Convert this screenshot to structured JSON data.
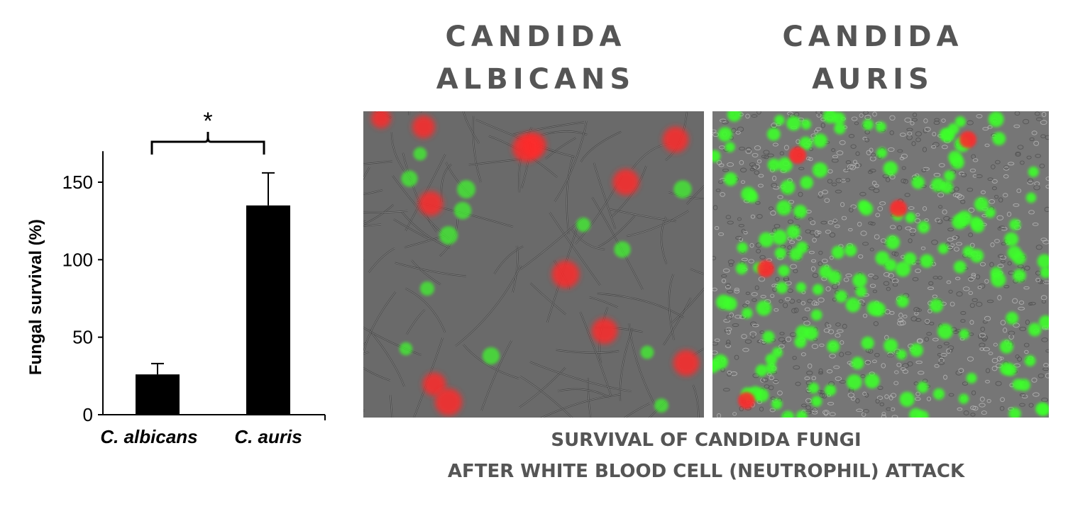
{
  "chart_data": {
    "type": "bar",
    "categories": [
      "C. albicans",
      "C. auris"
    ],
    "values": [
      26,
      135
    ],
    "errors": [
      7,
      21
    ],
    "ylabel": "Fungal survival (%)",
    "xlabel": "",
    "yticks": [
      0,
      50,
      100,
      150
    ],
    "ylim": [
      0,
      170
    ],
    "significance_marker": "*",
    "bar_color": "#000000",
    "grid": false,
    "legend": "none"
  },
  "panels": {
    "left_title": [
      "CANDIDA",
      "ALBICANS"
    ],
    "right_title": [
      "CANDIDA",
      "AURIS"
    ],
    "left_image": "microscopy-candida-albicans",
    "right_image": "microscopy-candida-auris"
  },
  "caption": {
    "line1": "SURVIVAL OF CANDIDA FUNGI",
    "line2": "AFTER WHITE BLOOD CELL (NEUTROPHIL) ATTACK"
  },
  "colors": {
    "title_gray": "#555555",
    "fluor_red": "#ff2a2a",
    "fluor_green": "#3dff2a",
    "micro_bg": "#6a6a6a"
  }
}
